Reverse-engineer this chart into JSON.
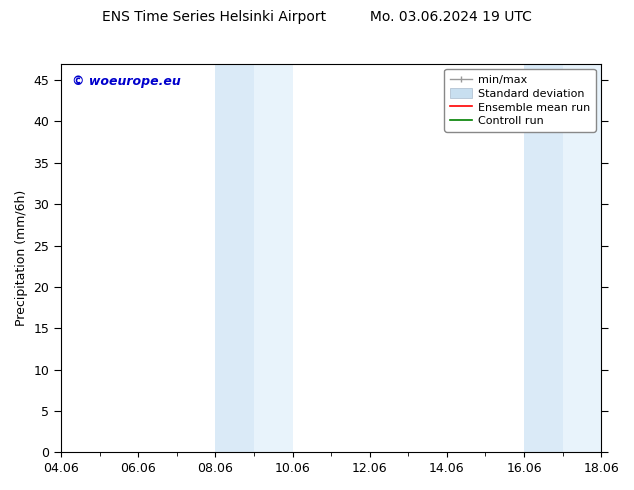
{
  "title_left": "ENS Time Series Helsinki Airport",
  "title_right": "Mo. 03.06.2024 19 UTC",
  "ylabel": "Precipitation (mm/6h)",
  "xlim_days": [
    0,
    14
  ],
  "ylim": [
    0,
    47
  ],
  "yticks": [
    0,
    5,
    10,
    15,
    20,
    25,
    30,
    35,
    40,
    45
  ],
  "xtick_labels": [
    "04.06",
    "06.06",
    "08.06",
    "10.06",
    "12.06",
    "14.06",
    "16.06",
    "18.06"
  ],
  "xtick_positions": [
    0,
    2,
    4,
    6,
    8,
    10,
    12,
    14
  ],
  "shaded_regions": [
    {
      "xmin": 4.0,
      "xmax": 5.0,
      "color": "#daeaf7"
    },
    {
      "xmin": 5.0,
      "xmax": 6.0,
      "color": "#e8f3fb"
    },
    {
      "xmin": 12.0,
      "xmax": 13.0,
      "color": "#daeaf7"
    },
    {
      "xmin": 13.0,
      "xmax": 14.0,
      "color": "#e8f3fb"
    }
  ],
  "bg_color": "#ffffff",
  "plot_bg_color": "#ffffff",
  "watermark_text": "© woeurope.eu",
  "watermark_color": "#0000cc",
  "legend_items": [
    {
      "label": "min/max",
      "color": "#aaaaaa"
    },
    {
      "label": "Standard deviation",
      "color": "#c8dff0"
    },
    {
      "label": "Ensemble mean run",
      "color": "#ff0000"
    },
    {
      "label": "Controll run",
      "color": "#008000"
    }
  ],
  "title_fontsize": 10,
  "axis_fontsize": 9,
  "legend_fontsize": 8,
  "watermark_fontsize": 9
}
